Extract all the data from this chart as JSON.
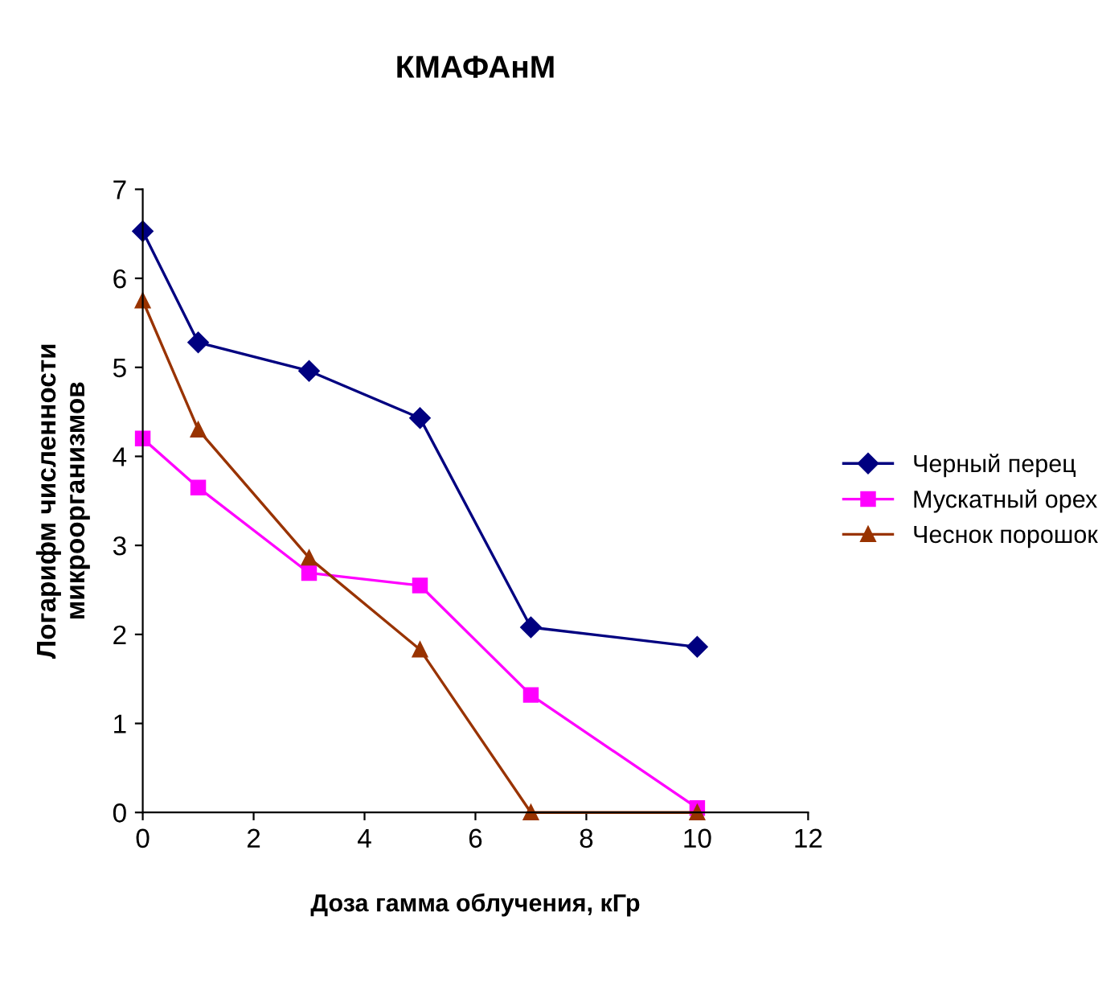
{
  "chart_data": {
    "type": "line",
    "title": "КМАФАнМ",
    "xlabel": "Доза гамма облучения, кГр",
    "ylabel": "Логарифм численности\nмикроорганизмов",
    "xlim": [
      0,
      12
    ],
    "xticks": [
      0,
      2,
      4,
      6,
      8,
      10,
      12
    ],
    "ylim": [
      0,
      7
    ],
    "yticks": [
      0,
      1,
      2,
      3,
      4,
      5,
      6,
      7
    ],
    "grid": false,
    "legend": "right",
    "x": [
      0,
      1,
      3,
      5,
      7,
      10
    ],
    "series": [
      {
        "name": "Черный перец",
        "color": "#000080",
        "marker": "diamond",
        "values": [
          6.53,
          5.28,
          4.96,
          4.43,
          2.08,
          1.86
        ]
      },
      {
        "name": "Мускатный орех",
        "color": "#ff00ff",
        "marker": "square",
        "values": [
          4.2,
          3.65,
          2.69,
          2.55,
          1.32,
          0.05
        ]
      },
      {
        "name": "Чеснок порошок",
        "color": "#993300",
        "marker": "triangle",
        "values": [
          5.75,
          4.3,
          2.86,
          1.83,
          0,
          0
        ]
      }
    ]
  }
}
